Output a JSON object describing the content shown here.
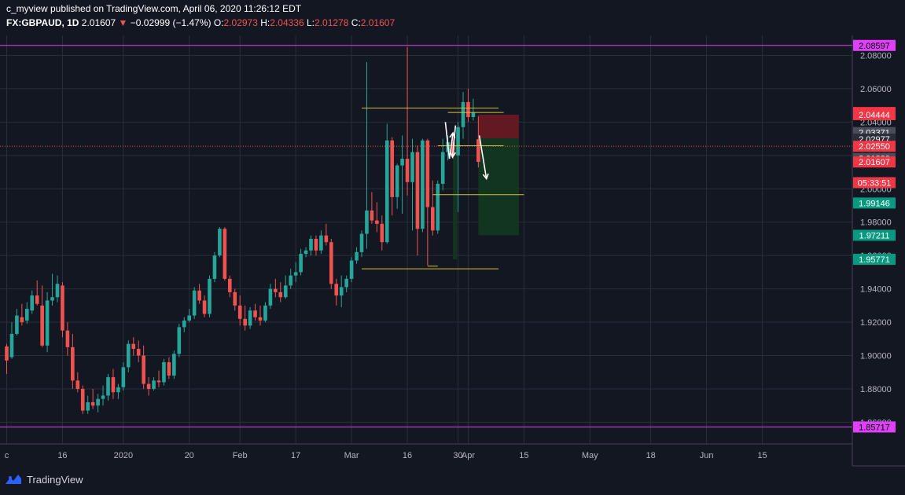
{
  "header": {
    "publisher_line": "c_myview published on TradingView.com, April 06, 2020 11:26:12 EDT",
    "symbol": "FX:GBPAUD, 1D",
    "last": "2.01607",
    "change": "−0.02999 (−1.47%)",
    "o_label": "O:",
    "o_value": "2.02973",
    "h_label": "H:",
    "h_value": "2.04336",
    "l_label": "L:",
    "l_value": "2.01278",
    "c_label": "C:",
    "c_value": "2.01607"
  },
  "brand": {
    "name": "TradingView"
  },
  "colors": {
    "bg": "#131722",
    "up": "#26a69a",
    "down": "#ef5350",
    "grid": "#2a2e39",
    "magenta": "#e040fb",
    "yellow": "#d4c23a",
    "text": "#b2b5be"
  },
  "chart_data": {
    "type": "candlestick",
    "ylim": [
      1.847,
      2.092
    ],
    "grid": true,
    "price_ticks": [
      "2.08000",
      "2.06000",
      "2.04000",
      "2.02000",
      "2.00000",
      "1.98000",
      "1.96000",
      "1.94000",
      "1.92000",
      "1.90000",
      "1.88000",
      "1.86000"
    ],
    "time_ticks": [
      {
        "label": "c",
        "index": 0
      },
      {
        "label": "16",
        "index": 11
      },
      {
        "label": "2020",
        "index": 23
      },
      {
        "label": "20",
        "index": 36
      },
      {
        "label": "Feb",
        "index": 46
      },
      {
        "label": "17",
        "index": 57
      },
      {
        "label": "Mar",
        "index": 68
      },
      {
        "label": "16",
        "index": 79
      },
      {
        "label": "30",
        "index": 89
      },
      {
        "label": "Apr",
        "index": 91
      },
      {
        "label": "15",
        "index": 102
      },
      {
        "label": "May",
        "index": 115
      },
      {
        "label": "18",
        "index": 127
      },
      {
        "label": "Jun",
        "index": 138
      },
      {
        "label": "15",
        "index": 149
      }
    ],
    "price_labels": [
      {
        "text": "2.08597",
        "value": 2.08597,
        "bg": "#e040fb",
        "fg": "#000000"
      },
      {
        "text": "2.04576",
        "value": 2.04576,
        "bg": "#f23645",
        "fg": "#ffffff"
      },
      {
        "text": "2.04444",
        "value": 2.04444,
        "bg": "#f23645",
        "fg": "#ffffff"
      },
      {
        "text": "2.03371",
        "value": 2.03371,
        "bg": "#4a4d57",
        "fg": "#ffffff"
      },
      {
        "text": "2.02977",
        "value": 2.02977,
        "bg": "#2a2e39",
        "fg": "#ffffff"
      },
      {
        "text": "2.02550",
        "value": 2.0255,
        "bg": "#f23645",
        "fg": "#ffffff"
      },
      {
        "text": "2.01820",
        "value": 2.0182,
        "bg": "#4a4d57",
        "fg": "#ffffff"
      },
      {
        "text": "2.01607",
        "value": 2.01607,
        "bg": "#f23645",
        "fg": "#ffffff"
      },
      {
        "text": "05:33:51",
        "value": 2.00367,
        "bg": "#f23645",
        "fg": "#ffffff"
      },
      {
        "text": "1.99146",
        "value": 1.99146,
        "bg": "#089981",
        "fg": "#ffffff"
      },
      {
        "text": "1.97211",
        "value": 1.97211,
        "bg": "#089981",
        "fg": "#ffffff"
      },
      {
        "text": "1.95771",
        "value": 1.95771,
        "bg": "#089981",
        "fg": "#ffffff"
      },
      {
        "text": "1.85717",
        "value": 1.85717,
        "bg": "#e040fb",
        "fg": "#000000"
      }
    ],
    "hlines": [
      {
        "value": 2.08597,
        "color": "#e040fb",
        "style": "solid"
      },
      {
        "value": 1.85717,
        "color": "#e040fb",
        "style": "solid"
      },
      {
        "value": 2.0255,
        "color": "#ef5350",
        "style": "dotted"
      }
    ],
    "segments": [
      {
        "i1": 70,
        "i2": 97,
        "value": 2.04835,
        "color": "#d4c23a"
      },
      {
        "i1": 87,
        "i2": 98,
        "value": 2.04576,
        "color": "#d4c23a"
      },
      {
        "i1": 85,
        "i2": 98,
        "value": 2.0258,
        "color": "#d4c23a"
      },
      {
        "i1": 84,
        "i2": 102,
        "value": 1.9965,
        "color": "#d4c23a"
      },
      {
        "i1": 83,
        "i2": 85,
        "value": 1.9536,
        "color": "#d4c23a"
      },
      {
        "i1": 70,
        "i2": 97,
        "value": 1.952,
        "color": "#d4c23a"
      }
    ],
    "zones": [
      {
        "i1": 93,
        "i2": 101,
        "top": 2.04444,
        "bottom": 2.0303,
        "color": "#6d1a22"
      },
      {
        "i1": 93,
        "i2": 101,
        "top": 2.0303,
        "bottom": 1.97211,
        "color": "#12391f"
      },
      {
        "i1": 88,
        "i2": 88.8,
        "top": 2.0255,
        "bottom": 1.95771,
        "color": "#12391f"
      }
    ],
    "arrows": [
      {
        "points": [
          [
            86.5,
            2.04
          ],
          [
            87.3,
            2.018
          ],
          [
            88.0,
            2.0335
          ]
        ]
      },
      {
        "points": [
          [
            88.5,
            2.038
          ],
          [
            87.9,
            2.019
          ]
        ]
      },
      {
        "points": [
          [
            93.2,
            2.032
          ],
          [
            94.6,
            2.006
          ]
        ]
      }
    ],
    "candles": [
      [
        1.9055,
        1.907,
        1.889,
        1.897
      ],
      [
        1.899,
        1.92,
        1.898,
        1.913
      ],
      [
        1.913,
        1.928,
        1.912,
        1.924
      ],
      [
        1.923,
        1.931,
        1.918,
        1.92
      ],
      [
        1.921,
        1.932,
        1.919,
        1.928
      ],
      [
        1.927,
        1.939,
        1.925,
        1.936
      ],
      [
        1.936,
        1.945,
        1.93,
        1.931
      ],
      [
        1.93,
        1.942,
        1.905,
        1.906
      ],
      [
        1.906,
        1.938,
        1.902,
        1.933
      ],
      [
        1.933,
        1.949,
        1.93,
        1.935
      ],
      [
        1.935,
        1.948,
        1.932,
        1.943
      ],
      [
        1.942,
        1.944,
        1.911,
        1.915
      ],
      [
        1.915,
        1.92,
        1.9,
        1.905
      ],
      [
        1.905,
        1.913,
        1.88,
        1.885
      ],
      [
        1.885,
        1.89,
        1.878,
        1.88
      ],
      [
        1.88,
        1.882,
        1.865,
        1.867
      ],
      [
        1.867,
        1.876,
        1.865,
        1.872
      ],
      [
        1.872,
        1.88,
        1.868,
        1.87
      ],
      [
        1.87,
        1.877,
        1.866,
        1.874
      ],
      [
        1.874,
        1.882,
        1.87,
        1.876
      ],
      [
        1.876,
        1.889,
        1.873,
        1.887
      ],
      [
        1.887,
        1.892,
        1.874,
        1.878
      ],
      [
        1.878,
        1.883,
        1.874,
        1.881
      ],
      [
        1.881,
        1.896,
        1.879,
        1.893
      ],
      [
        1.893,
        1.909,
        1.89,
        1.907
      ],
      [
        1.907,
        1.911,
        1.9,
        1.904
      ],
      [
        1.904,
        1.909,
        1.896,
        1.9
      ],
      [
        1.9,
        1.906,
        1.88,
        1.883
      ],
      [
        1.883,
        1.887,
        1.876,
        1.88
      ],
      [
        1.88,
        1.887,
        1.879,
        1.885
      ],
      [
        1.885,
        1.891,
        1.881,
        1.884
      ],
      [
        1.884,
        1.898,
        1.882,
        1.896
      ],
      [
        1.896,
        1.899,
        1.886,
        1.888
      ],
      [
        1.888,
        1.903,
        1.886,
        1.901
      ],
      [
        1.901,
        1.919,
        1.899,
        1.917
      ],
      [
        1.917,
        1.923,
        1.914,
        1.921
      ],
      [
        1.921,
        1.928,
        1.92,
        1.924
      ],
      [
        1.924,
        1.941,
        1.922,
        1.939
      ],
      [
        1.939,
        1.943,
        1.931,
        1.933
      ],
      [
        1.933,
        1.936,
        1.923,
        1.925
      ],
      [
        1.925,
        1.948,
        1.923,
        1.946
      ],
      [
        1.946,
        1.962,
        1.944,
        1.96
      ],
      [
        1.96,
        1.977,
        1.959,
        1.976
      ],
      [
        1.976,
        1.977,
        1.945,
        1.946
      ],
      [
        1.946,
        1.948,
        1.935,
        1.938
      ],
      [
        1.938,
        1.94,
        1.927,
        1.93
      ],
      [
        1.93,
        1.936,
        1.918,
        1.922
      ],
      [
        1.922,
        1.93,
        1.915,
        1.918
      ],
      [
        1.918,
        1.929,
        1.916,
        1.927
      ],
      [
        1.927,
        1.931,
        1.921,
        1.923
      ],
      [
        1.923,
        1.93,
        1.918,
        1.921
      ],
      [
        1.921,
        1.932,
        1.92,
        1.93
      ],
      [
        1.93,
        1.943,
        1.928,
        1.94
      ],
      [
        1.94,
        1.946,
        1.935,
        1.938
      ],
      [
        1.938,
        1.944,
        1.932,
        1.935
      ],
      [
        1.935,
        1.948,
        1.934,
        1.942
      ],
      [
        1.942,
        1.952,
        1.94,
        1.948
      ],
      [
        1.948,
        1.956,
        1.944,
        1.95
      ],
      [
        1.95,
        1.964,
        1.948,
        1.961
      ],
      [
        1.961,
        1.965,
        1.959,
        1.963
      ],
      [
        1.963,
        1.972,
        1.96,
        1.97
      ],
      [
        1.97,
        1.972,
        1.96,
        1.963
      ],
      [
        1.963,
        1.975,
        1.961,
        1.972
      ],
      [
        1.972,
        1.979,
        1.966,
        1.968
      ],
      [
        1.968,
        1.97,
        1.94,
        1.943
      ],
      [
        1.943,
        1.946,
        1.93,
        1.936
      ],
      [
        1.936,
        1.948,
        1.929,
        1.941
      ],
      [
        1.941,
        1.948,
        1.938,
        1.946
      ],
      [
        1.946,
        1.959,
        1.944,
        1.957
      ],
      [
        1.957,
        1.965,
        1.955,
        1.962
      ],
      [
        1.962,
        1.975,
        1.959,
        1.973
      ],
      [
        1.973,
        2.076,
        1.964,
        1.987
      ],
      [
        1.987,
        1.998,
        1.979,
        1.981
      ],
      [
        1.981,
        1.992,
        1.974,
        1.979
      ],
      [
        1.979,
        1.984,
        1.963,
        1.968
      ],
      [
        1.968,
        2.039,
        1.967,
        2.029
      ],
      [
        2.029,
        2.031,
        1.984,
        1.995
      ],
      [
        1.995,
        2.015,
        1.988,
        2.014
      ],
      [
        2.014,
        2.032,
        1.985,
        2.018
      ],
      [
        2.018,
        2.085,
        1.996,
        2.004
      ],
      [
        2.004,
        2.03,
        1.975,
        2.022
      ],
      [
        2.022,
        2.026,
        1.96,
        1.976
      ],
      [
        1.976,
        2.03,
        1.974,
        2.029
      ],
      [
        2.029,
        2.03,
        1.954,
        1.989
      ],
      [
        1.989,
        2.005,
        1.972,
        1.975
      ],
      [
        1.975,
        2.005,
        1.973,
        2.003
      ],
      [
        2.003,
        2.03,
        1.999,
        2.022
      ],
      [
        2.022,
        2.032,
        2.017,
        2.028
      ],
      [
        2.028,
        2.032,
        2.018,
        2.02
      ],
      [
        2.02,
        2.04,
        1.986,
        2.037
      ],
      [
        2.037,
        2.058,
        2.03,
        2.052
      ],
      [
        2.052,
        2.06,
        2.04,
        2.043
      ],
      [
        2.043,
        2.054,
        2.041,
        2.0458
      ],
      [
        2.0297,
        2.0434,
        2.0128,
        2.0161
      ]
    ]
  }
}
